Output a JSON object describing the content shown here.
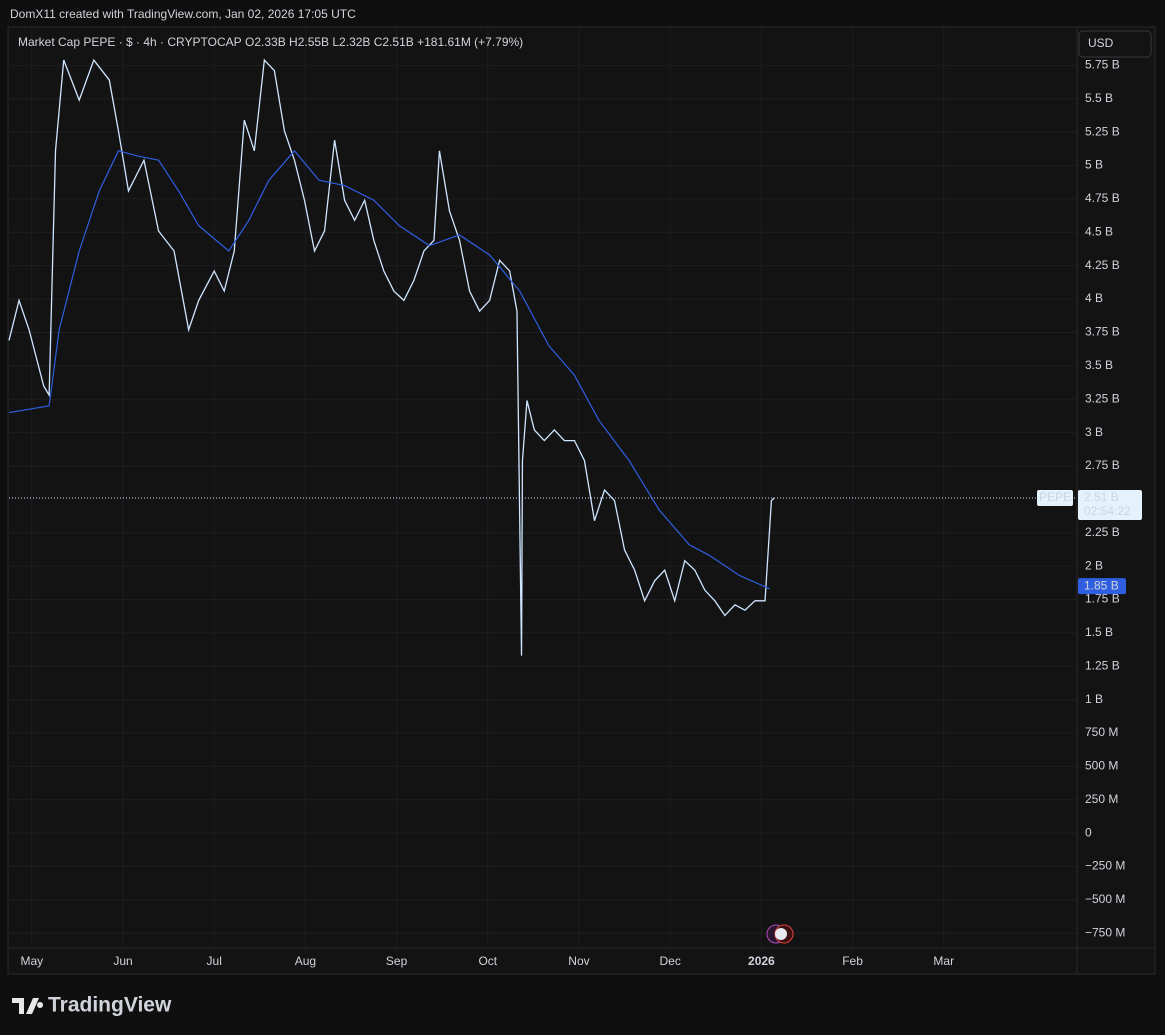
{
  "header": {
    "credit": "DomX11 created with TradingView.com, Jan 02, 2026 17:05 UTC"
  },
  "legend": {
    "symbol": "Market Cap PEPE · $ · 4h · CRYPTOCAP",
    "ohlc": "O2.33B H2.55B L2.32B C2.51B +181.61M (+7.79%)"
  },
  "currency_button": "USD",
  "logo": "TradingView",
  "chart_data": {
    "type": "line",
    "xlim": [
      -0.25,
      11.45
    ],
    "ylim": [
      -0.86,
      6.03
    ],
    "grid": true,
    "xticks": [
      {
        "value": 0,
        "label": "May"
      },
      {
        "value": 1,
        "label": "Jun"
      },
      {
        "value": 2,
        "label": "Jul"
      },
      {
        "value": 3,
        "label": "Aug"
      },
      {
        "value": 4,
        "label": "Sep"
      },
      {
        "value": 5,
        "label": "Oct"
      },
      {
        "value": 6,
        "label": "Nov"
      },
      {
        "value": 7,
        "label": "Dec"
      },
      {
        "value": 8,
        "label": "2026"
      },
      {
        "value": 9,
        "label": "Feb"
      },
      {
        "value": 10,
        "label": "Mar"
      }
    ],
    "yticks": [
      {
        "value": 5.75,
        "label": "5.75 B"
      },
      {
        "value": 5.5,
        "label": "5.5 B"
      },
      {
        "value": 5.25,
        "label": "5.25 B"
      },
      {
        "value": 5,
        "label": "5 B"
      },
      {
        "value": 4.75,
        "label": "4.75 B"
      },
      {
        "value": 4.5,
        "label": "4.5 B"
      },
      {
        "value": 4.25,
        "label": "4.25 B"
      },
      {
        "value": 4,
        "label": "4 B"
      },
      {
        "value": 3.75,
        "label": "3.75 B"
      },
      {
        "value": 3.5,
        "label": "3.5 B"
      },
      {
        "value": 3.25,
        "label": "3.25 B"
      },
      {
        "value": 3,
        "label": "3 B"
      },
      {
        "value": 2.75,
        "label": "2.75 B"
      },
      {
        "value": 2.25,
        "label": "2.25 B"
      },
      {
        "value": 2,
        "label": "2 B"
      },
      {
        "value": 1.75,
        "label": "1.75 B"
      },
      {
        "value": 1.5,
        "label": "1.5 B"
      },
      {
        "value": 1.25,
        "label": "1.25 B"
      },
      {
        "value": 1,
        "label": "1 B"
      },
      {
        "value": 0.75,
        "label": "750 M"
      },
      {
        "value": 0.5,
        "label": "500 M"
      },
      {
        "value": 0.25,
        "label": "250 M"
      },
      0,
      {
        "value": -0.25,
        "label": "−250 M"
      },
      {
        "value": -0.5,
        "label": "−500 M"
      },
      {
        "value": -0.75,
        "label": "−750 M"
      }
    ],
    "series": [
      {
        "name": "PEPE",
        "color": "#cfe6ff",
        "x": [
          -0.25,
          -0.14,
          -0.03,
          0.13,
          0.19,
          0.26,
          0.35,
          0.52,
          0.68,
          0.85,
          0.95,
          1.06,
          1.23,
          1.39,
          1.56,
          1.72,
          1.83,
          2.0,
          2.11,
          2.22,
          2.33,
          2.44,
          2.55,
          2.66,
          2.77,
          2.88,
          2.99,
          3.1,
          3.21,
          3.32,
          3.43,
          3.54,
          3.65,
          3.75,
          3.86,
          3.97,
          4.08,
          4.19,
          4.3,
          4.41,
          4.47,
          4.58,
          4.69,
          4.8,
          4.91,
          5.02,
          5.13,
          5.24,
          5.32,
          5.37,
          5.38,
          5.43,
          5.51,
          5.62,
          5.73,
          5.84,
          5.95,
          6.06,
          6.17,
          6.28,
          6.39,
          6.5,
          6.61,
          6.72,
          6.83,
          6.94,
          7.05,
          7.16,
          7.27,
          7.38,
          7.49,
          7.6,
          7.71,
          7.82,
          7.93,
          8.04,
          8.11,
          8.14
        ],
        "values": [
          3.69,
          3.99,
          3.77,
          3.35,
          3.28,
          5.11,
          5.79,
          5.49,
          5.79,
          5.64,
          5.26,
          4.81,
          5.04,
          4.51,
          4.36,
          3.77,
          3.99,
          4.21,
          4.06,
          4.36,
          5.34,
          5.11,
          5.79,
          5.71,
          5.26,
          5.04,
          4.74,
          4.36,
          4.51,
          5.19,
          4.74,
          4.59,
          4.74,
          4.44,
          4.21,
          4.06,
          3.99,
          4.14,
          4.36,
          4.44,
          5.11,
          4.66,
          4.44,
          4.06,
          3.91,
          3.99,
          4.29,
          4.21,
          3.91,
          1.33,
          2.79,
          3.24,
          3.02,
          2.94,
          3.02,
          2.94,
          2.94,
          2.79,
          2.34,
          2.57,
          2.49,
          2.12,
          1.97,
          1.74,
          1.89,
          1.97,
          1.74,
          2.04,
          1.97,
          1.82,
          1.74,
          1.63,
          1.71,
          1.67,
          1.74,
          1.74,
          2.49,
          2.51
        ]
      },
      {
        "color": "#2f5fe0",
        "x": [
          -0.25,
          0.19,
          0.3,
          0.52,
          0.74,
          0.95,
          1.17,
          1.39,
          1.61,
          1.83,
          2.16,
          2.38,
          2.6,
          2.88,
          3.15,
          3.43,
          3.75,
          4.03,
          4.36,
          4.69,
          5.02,
          5.35,
          5.67,
          5.95,
          6.22,
          6.55,
          6.88,
          7.21,
          7.43,
          7.76,
          8.09
        ],
        "values": [
          3.15,
          3.2,
          3.77,
          4.36,
          4.81,
          5.11,
          5.07,
          5.04,
          4.81,
          4.55,
          4.36,
          4.59,
          4.89,
          5.11,
          4.89,
          4.85,
          4.74,
          4.55,
          4.4,
          4.48,
          4.33,
          4.06,
          3.65,
          3.43,
          3.09,
          2.79,
          2.42,
          2.16,
          2.08,
          1.93,
          1.83
        ]
      }
    ],
    "last_price": {
      "value": 2.51,
      "label": "2.51 B",
      "countdown": "02:54:22"
    },
    "ma_price": {
      "value": 1.85,
      "label": "1.85 B"
    }
  }
}
